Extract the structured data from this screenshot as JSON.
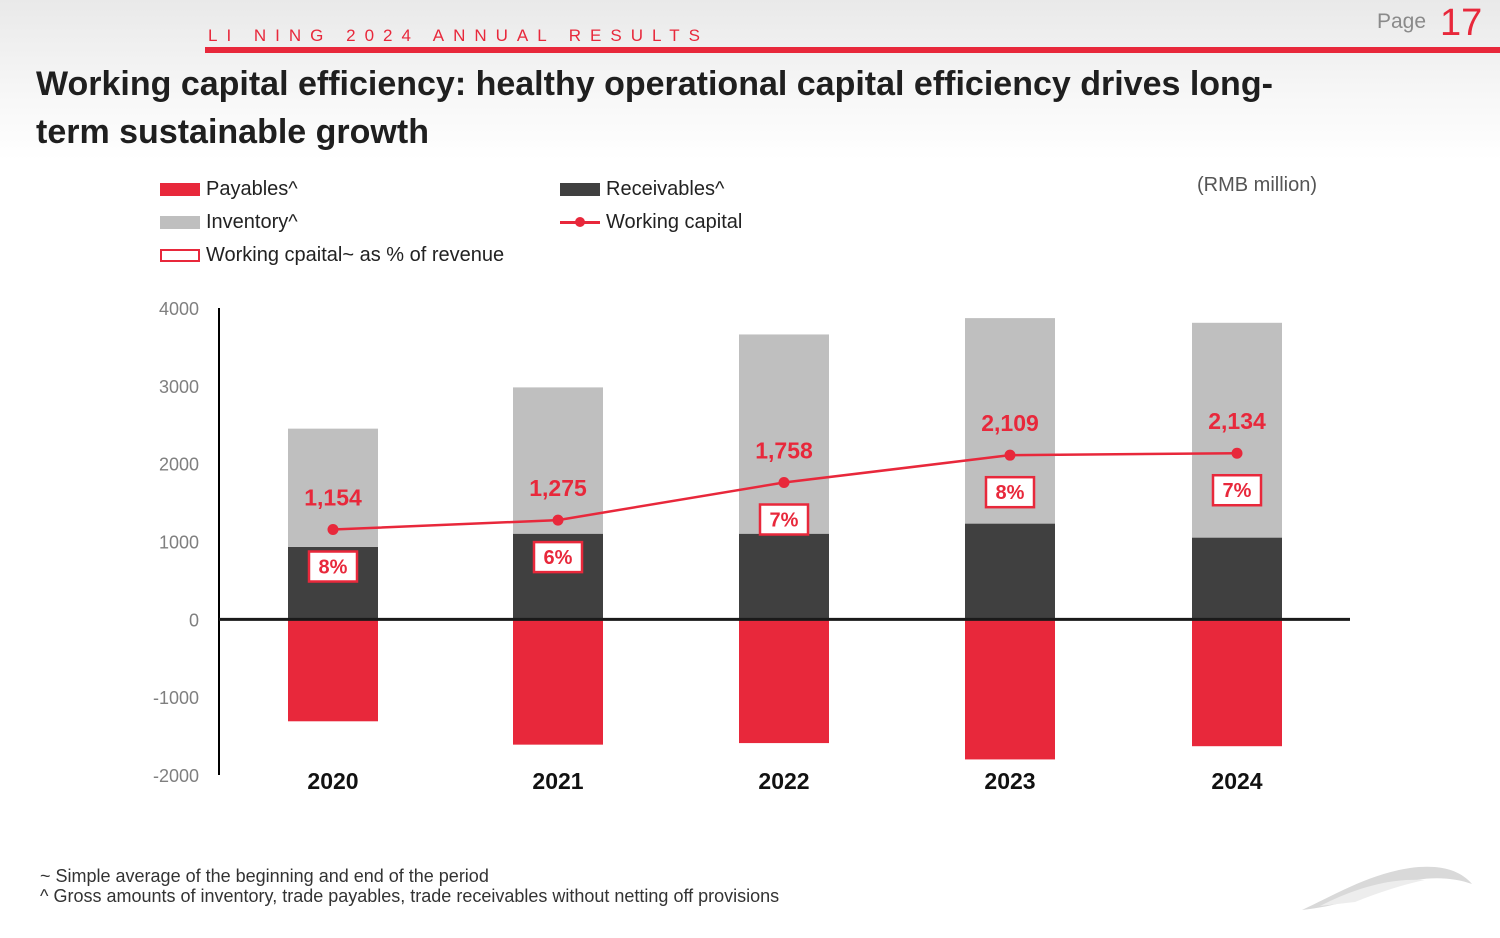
{
  "header": {
    "report_title": "LI NING 2024 ANNUAL RESULTS",
    "page_label": "Page",
    "page_number": "17"
  },
  "title": "Working capital efficiency: healthy operational capital efficiency drives long-term sustainable growth",
  "unit": "(RMB million)",
  "legend": {
    "payables": "Payables^",
    "receivables": "Receivables^",
    "inventory": "Inventory^",
    "working_capital": "Working capital",
    "pct_revenue": "Working cpaital~ as % of revenue"
  },
  "chart_data": {
    "type": "bar",
    "stacked": true,
    "categories": [
      "2020",
      "2021",
      "2022",
      "2023",
      "2024"
    ],
    "ylim": [
      -2000,
      4000
    ],
    "yticks": [
      "4000",
      "3000",
      "2000",
      "1000",
      "0",
      "-1000",
      "-2000"
    ],
    "series": [
      {
        "name": "Payables^",
        "values": [
          -1310,
          -1610,
          -1590,
          -1800,
          -1630
        ],
        "color": "#e8283b"
      },
      {
        "name": "Receivables^",
        "values": [
          930,
          1100,
          1100,
          1230,
          1050
        ],
        "color": "#404040"
      },
      {
        "name": "Inventory^",
        "values": [
          1520,
          1880,
          2560,
          2640,
          2760
        ],
        "color": "#bfbfbf"
      }
    ],
    "line": {
      "name": "Working capital",
      "values": [
        1154,
        1275,
        1758,
        2109,
        2134
      ],
      "labels": [
        "1,154",
        "1,275",
        "1,758",
        "2,109",
        "2,134"
      ],
      "color": "#e8283b"
    },
    "pct_of_revenue": {
      "name": "Working cpaital~ as % of revenue",
      "labels": [
        "8%",
        "6%",
        "7%",
        "8%",
        "7%"
      ]
    }
  },
  "footnotes": [
    "~ Simple average of the beginning and end of the period",
    "^ Gross amounts of inventory, trade payables, trade receivables without netting off provisions"
  ]
}
